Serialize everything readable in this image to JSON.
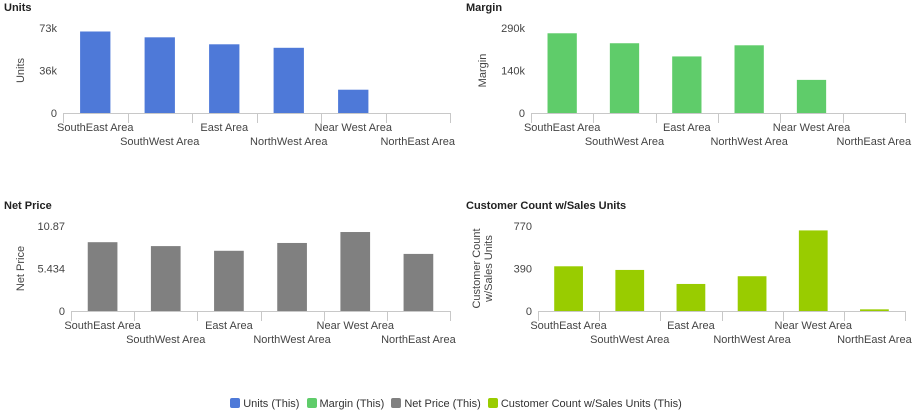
{
  "chart_data": [
    {
      "type": "bar",
      "title": "Units",
      "ylabel": "Units",
      "xlabel": "",
      "categories": [
        "SouthEast Area",
        "SouthWest Area",
        "East Area",
        "NorthWest Area",
        "Near West Area",
        "NorthEast Area"
      ],
      "values": [
        70000,
        65000,
        59000,
        56000,
        20000,
        0
      ],
      "yticks": [
        "0",
        "36k",
        "73k"
      ],
      "ylim": [
        0,
        73000
      ],
      "color": "#4e79d8",
      "grid": false
    },
    {
      "type": "bar",
      "title": "Margin",
      "ylabel": "Margin",
      "xlabel": "",
      "categories": [
        "SouthEast Area",
        "SouthWest Area",
        "East Area",
        "NorthWest Area",
        "Near West Area",
        "NorthEast Area"
      ],
      "values": [
        272000,
        238000,
        193000,
        231000,
        113000,
        0
      ],
      "yticks": [
        "0",
        "140k",
        "290k"
      ],
      "ylim": [
        0,
        290000
      ],
      "color": "#5fcc6a",
      "grid": false
    },
    {
      "type": "bar",
      "title": "Net Price",
      "ylabel": "Net Price",
      "xlabel": "",
      "categories": [
        "SouthEast Area",
        "SouthWest Area",
        "East Area",
        "NorthWest Area",
        "Near West Area",
        "NorthEast Area"
      ],
      "values": [
        8.8,
        8.3,
        7.7,
        8.7,
        10.1,
        7.3
      ],
      "yticks": [
        "0",
        "5.434",
        "10.87"
      ],
      "ylim": [
        0,
        10.87
      ],
      "color": "#808080",
      "grid": false
    },
    {
      "type": "bar",
      "title": "Customer Count w/Sales Units",
      "ylabel": "Customer Count w/Sales Units",
      "xlabel": "",
      "categories": [
        "SouthEast Area",
        "SouthWest Area",
        "East Area",
        "NorthWest Area",
        "Near West Area",
        "NorthEast Area"
      ],
      "values": [
        405,
        372,
        245,
        315,
        730,
        15
      ],
      "yticks": [
        "0",
        "390",
        "770"
      ],
      "ylim": [
        0,
        770
      ],
      "color": "#99cc00",
      "grid": false
    }
  ],
  "legend": {
    "placement": "bottom-center",
    "items": [
      {
        "label": "Units (This)",
        "color": "#4e79d8"
      },
      {
        "label": "Margin (This)",
        "color": "#5fcc6a"
      },
      {
        "label": "Net Price (This)",
        "color": "#808080"
      },
      {
        "label": "Customer Count w/Sales Units (This)",
        "color": "#99cc00"
      }
    ]
  }
}
